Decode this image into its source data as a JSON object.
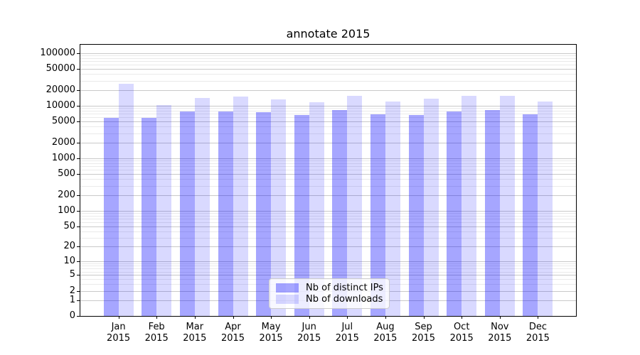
{
  "chart_data": {
    "type": "bar",
    "title": "annotate 2015",
    "yscale": "log1p",
    "ylim": [
      0,
      145000
    ],
    "yticks": [
      0,
      1,
      2,
      5,
      10,
      20,
      50,
      100,
      200,
      500,
      1000,
      2000,
      5000,
      10000,
      20000,
      50000,
      100000
    ],
    "minor_subs": [
      3,
      4,
      6,
      7,
      8,
      9
    ],
    "grid": {
      "major_color": "#c9c9c9",
      "minor_color": "#eaeaea"
    },
    "legend_position": "lower center",
    "categories": [
      {
        "line1": "Jan",
        "line2": "2015"
      },
      {
        "line1": "Feb",
        "line2": "2015"
      },
      {
        "line1": "Mar",
        "line2": "2015"
      },
      {
        "line1": "Apr",
        "line2": "2015"
      },
      {
        "line1": "May",
        "line2": "2015"
      },
      {
        "line1": "Jun",
        "line2": "2015"
      },
      {
        "line1": "Jul",
        "line2": "2015"
      },
      {
        "line1": "Aug",
        "line2": "2015"
      },
      {
        "line1": "Sep",
        "line2": "2015"
      },
      {
        "line1": "Oct",
        "line2": "2015"
      },
      {
        "line1": "Nov",
        "line2": "2015"
      },
      {
        "line1": "Dec",
        "line2": "2015"
      }
    ],
    "series": [
      {
        "name": "Nb of distinct IPs",
        "color": "rgba(0,0,255,0.35)",
        "hex_over_white": "#a6a6ff",
        "values": [
          5900,
          5900,
          7900,
          7900,
          7500,
          6600,
          8300,
          6900,
          6700,
          7900,
          8300,
          6800
        ]
      },
      {
        "name": "Nb of downloads",
        "color": "rgba(0,0,255,0.15)",
        "hex_over_white": "#d9d9ff",
        "values": [
          26000,
          10200,
          14000,
          15000,
          13200,
          11600,
          15700,
          12200,
          13500,
          15400,
          15500,
          12200
        ]
      }
    ]
  }
}
